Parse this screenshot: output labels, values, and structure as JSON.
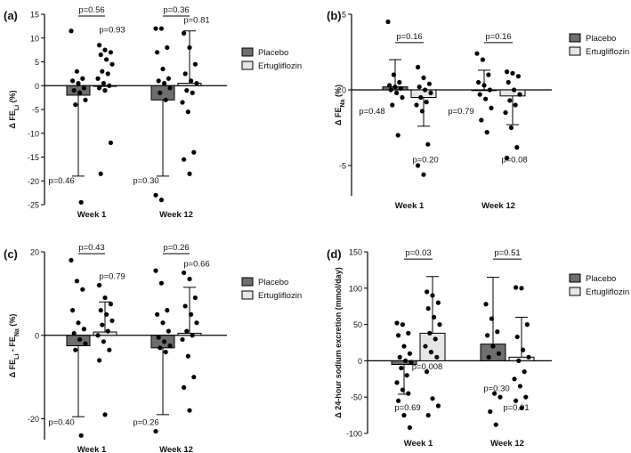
{
  "chart_data": [
    {
      "type": "bar",
      "panel_label": "(a)",
      "ylabel_main": "Δ FE",
      "ylabel_sub": "Li",
      "ylabel_suffix": " (%)",
      "ylim": [
        -25,
        15
      ],
      "yticks": [
        15,
        10,
        5,
        0,
        -5,
        -10,
        -15,
        -20,
        -25
      ],
      "categories": [
        "Week 1",
        "Week 12"
      ],
      "legend": [
        "Placebo",
        "Ertugliflozin"
      ],
      "colors": {
        "placebo": "#6e6e6e",
        "ertugliflozin": "#e6e6e6"
      },
      "groups": [
        {
          "placebo": {
            "mean": -2.0,
            "err_low": -19.0,
            "err_high": null,
            "points": [
              11.5,
              3.0,
              1.5,
              1.0,
              0.5,
              -0.5,
              -1.0,
              -1.5,
              -3.0,
              -4.0,
              -24.5
            ]
          },
          "ertugliflozin": {
            "mean": 0.0,
            "err_low": null,
            "err_high": null,
            "points": [
              8.5,
              7.5,
              7.0,
              6.5,
              5.5,
              4.5,
              3.0,
              2.5,
              1.5,
              0.5,
              0.0,
              -0.5,
              -1.0,
              -12.0,
              -18.5
            ]
          },
          "pvals": {
            "placebo_label": "p=0.46",
            "ertugliflozin_label": "p=0.93",
            "between_label": "p=0.56"
          }
        },
        {
          "placebo": {
            "mean": -3.0,
            "err_low": -19.0,
            "err_high": null,
            "points": [
              12.0,
              12.0,
              8.0,
              7.0,
              3.5,
              1.5,
              1.0,
              0.5,
              -0.5,
              -1.5,
              -3.0,
              -23.0,
              -24.0
            ]
          },
          "ertugliflozin": {
            "mean": 0.5,
            "err_low": null,
            "err_high": 11.5,
            "points": [
              11.0,
              8.0,
              4.5,
              2.5,
              1.0,
              0.5,
              -1.0,
              -1.5,
              -3.5,
              -5.5,
              -14.0,
              -15.5,
              -18.5
            ]
          },
          "pvals": {
            "placebo_label": "p=0.30",
            "ertugliflozin_label": "p=0.81",
            "between_label": "p=0.36"
          }
        }
      ]
    },
    {
      "type": "bar",
      "panel_label": "(b)",
      "ylabel_main": "Δ FE",
      "ylabel_sub": "Na",
      "ylabel_suffix": " (%)",
      "ylim": [
        -7,
        5
      ],
      "yticks": [
        5,
        0,
        -5
      ],
      "categories": [
        "Week 1",
        "Week 12"
      ],
      "legend": [
        "Placebo",
        "Ertugliflozin"
      ],
      "colors": {
        "placebo": "#6e6e6e",
        "ertugliflozin": "#e6e6e6"
      },
      "groups": [
        {
          "placebo": {
            "mean": 0.2,
            "err_low": null,
            "err_high": 2.0,
            "points": [
              4.5,
              1.0,
              0.5,
              0.3,
              0.2,
              0.1,
              0.0,
              -0.2,
              -0.5,
              -1.0,
              -3.0
            ]
          },
          "ertugliflozin": {
            "mean": -0.5,
            "err_low": -2.4,
            "err_high": null,
            "points": [
              1.5,
              0.8,
              0.4,
              0.2,
              0.0,
              -0.2,
              -0.5,
              -0.8,
              -1.0,
              -1.4,
              -3.6,
              -5.0,
              -5.6
            ]
          },
          "pvals": {
            "placebo_label": "p=0.48",
            "ertugliflozin_label": "p=0.20",
            "between_label": "p=0.16"
          }
        },
        {
          "placebo": {
            "mean": 0.0,
            "err_low": null,
            "err_high": 1.3,
            "points": [
              2.4,
              2.0,
              1.0,
              0.5,
              0.3,
              0.0,
              -0.3,
              -0.6,
              -1.2,
              -2.0,
              -2.8
            ]
          },
          "ertugliflozin": {
            "mean": -0.4,
            "err_low": -2.3,
            "err_high": null,
            "points": [
              1.2,
              1.1,
              0.9,
              0.5,
              0.0,
              -0.3,
              -0.7,
              -1.0,
              -1.5,
              -2.5,
              -3.8,
              -4.5
            ]
          },
          "pvals": {
            "placebo_label": "p=0.79",
            "ertugliflozin_label": "p=0.08",
            "between_label": "p=0.16"
          }
        }
      ]
    },
    {
      "type": "bar",
      "panel_label": "(c)",
      "ylabel_main": "Δ FE",
      "ylabel_sub": "Li",
      "ylabel_mid": " - FE",
      "ylabel_sub2": "Na",
      "ylabel_suffix": " (%)",
      "ylim": [
        -25,
        20
      ],
      "yticks": [
        20,
        0,
        -20
      ],
      "categories": [
        "Week 1",
        "Week 12"
      ],
      "legend": [
        "Placebo",
        "Ertugliflozin"
      ],
      "colors": {
        "placebo": "#6e6e6e",
        "ertugliflozin": "#e6e6e6"
      },
      "groups": [
        {
          "placebo": {
            "mean": -2.5,
            "err_low": -19.5,
            "err_high": null,
            "points": [
              18.0,
              13.0,
              11.0,
              6.0,
              3.0,
              1.5,
              0.5,
              -1.0,
              -2.0,
              -3.5,
              -24.0
            ]
          },
          "ertugliflozin": {
            "mean": 0.8,
            "err_low": null,
            "err_high": 8.0,
            "points": [
              12.0,
              9.0,
              7.5,
              6.0,
              5.0,
              3.5,
              2.5,
              1.0,
              0.0,
              -1.5,
              -3.5,
              -6.0,
              -19.0
            ]
          },
          "pvals": {
            "placebo_label": "p=0.40",
            "ertugliflozin_label": "p=0.79",
            "between_label": "p=0.43"
          }
        },
        {
          "placebo": {
            "mean": -3.0,
            "err_low": -19.0,
            "err_high": null,
            "points": [
              15.5,
              12.5,
              6.0,
              5.0,
              3.0,
              1.0,
              -0.5,
              -1.5,
              -2.5,
              -3.0,
              -4.0,
              -23.0
            ]
          },
          "ertugliflozin": {
            "mean": 0.5,
            "err_low": null,
            "err_high": 11.5,
            "points": [
              15.0,
              13.5,
              9.0,
              7.0,
              5.0,
              3.0,
              1.0,
              0.0,
              -1.0,
              -5.0,
              -10.0,
              -12.5,
              -18.0
            ]
          },
          "pvals": {
            "placebo_label": "p=0.26",
            "ertugliflozin_label": "p=0.66",
            "between_label": "p=0.26"
          }
        }
      ]
    },
    {
      "type": "bar",
      "panel_label": "(d)",
      "ylabel_main": "Δ 24-hour sodium excretion (mmol/day)",
      "ylim": [
        -100,
        150
      ],
      "yticks": [
        150,
        100,
        50,
        0,
        -50,
        -100
      ],
      "categories": [
        "Week 1",
        "Week 12"
      ],
      "legend": [
        "Placebo",
        "Ertugliflozin"
      ],
      "colors": {
        "placebo": "#6e6e6e",
        "ertugliflozin": "#e6e6e6"
      },
      "groups": [
        {
          "placebo": {
            "mean": -5,
            "err_low": -46,
            "err_high": null,
            "points": [
              52,
              50,
              38,
              35,
              20,
              10,
              5,
              0,
              -2,
              -10,
              -20,
              -30,
              -40,
              -45,
              -55,
              -75,
              -92
            ]
          },
          "ertugliflozin": {
            "mean": 38,
            "err_low": null,
            "err_high": 116,
            "points": [
              95,
              90,
              80,
              72,
              60,
              50,
              38,
              30,
              20,
              12,
              5,
              -15,
              -52,
              -62,
              -75
            ]
          },
          "pvals": {
            "placebo_label": "p=0.69",
            "ertugliflozin_label": "p=0.008",
            "between_label": "p=0.03"
          }
        },
        {
          "placebo": {
            "mean": 23,
            "err_low": null,
            "err_high": 115,
            "points": [
              78,
              58,
              40,
              35,
              20,
              10,
              5,
              -45,
              -50,
              -70,
              -88
            ]
          },
          "ertugliflozin": {
            "mean": 5,
            "err_low": null,
            "err_high": 60,
            "points": [
              101,
              100,
              50,
              33,
              15,
              5,
              0,
              -15,
              -25,
              -35,
              -50,
              -55,
              -65
            ]
          },
          "pvals": {
            "placebo_label": "p=0.30",
            "ertugliflozin_label": "p=0.91",
            "between_label": "p=0.51"
          }
        }
      ]
    }
  ]
}
